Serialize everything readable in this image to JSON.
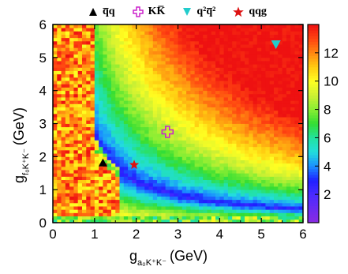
{
  "legend": {
    "items": [
      {
        "label": "q̅q",
        "marker": "triangle-up",
        "color": "#000000"
      },
      {
        "label": "KK̅",
        "marker": "open-cross",
        "color": "#cc22cc"
      },
      {
        "label": "q²q̅²",
        "marker": "triangle-down",
        "color": "#22cccc"
      },
      {
        "label": "qqg",
        "marker": "star",
        "color": "#dd1111"
      }
    ]
  },
  "chart_data": {
    "type": "heatmap",
    "xlabel": "g",
    "xlabel_sub": "a₀K⁺K⁻",
    "xlabel_unit": "(GeV)",
    "ylabel": "g",
    "ylabel_sub": "f₀K⁺K⁻",
    "ylabel_unit": "(GeV)",
    "xlim": [
      0,
      6
    ],
    "ylim": [
      0,
      6
    ],
    "x_ticks": [
      "0",
      "1",
      "2",
      "3",
      "4",
      "5",
      "6"
    ],
    "y_ticks": [
      "0",
      "1",
      "2",
      "3",
      "4",
      "5",
      "6"
    ],
    "colorbar": {
      "range": [
        0,
        14
      ],
      "ticks": [
        "2",
        "4",
        "6",
        "8",
        "10",
        "12"
      ],
      "tick_values": [
        2,
        4,
        6,
        8,
        10,
        12
      ]
    },
    "grid_resolution": 60,
    "description_of_field": "value increases with distance from the hyperbolic valley x*y ~ 2.5; noisy (yellow/orange/red) region near x<1.6",
    "markers": [
      {
        "name": "q̅q",
        "shape": "triangle-up",
        "color": "#000000",
        "x": 1.2,
        "y": 1.8
      },
      {
        "name": "KK̅",
        "shape": "open-cross",
        "color": "#cc22cc",
        "x": 2.75,
        "y": 2.75
      },
      {
        "name": "q²q̅²",
        "shape": "triangle-down",
        "color": "#22cccc",
        "x": 5.35,
        "y": 5.4
      },
      {
        "name": "qqg",
        "shape": "star",
        "color": "#dd1111",
        "x": 1.95,
        "y": 1.75
      }
    ]
  }
}
